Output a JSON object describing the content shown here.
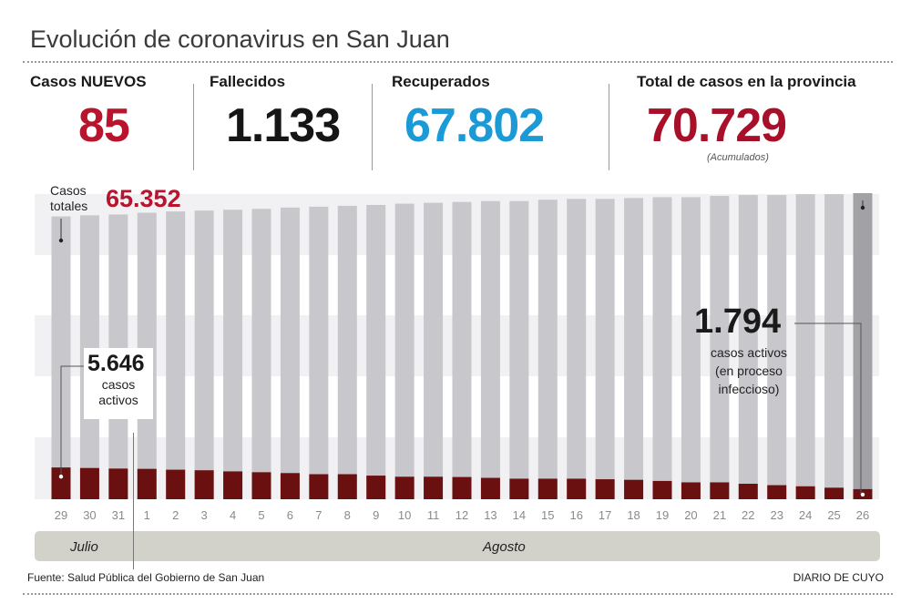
{
  "header": {
    "title": "Evolución de coronavirus en San Juan"
  },
  "stats": [
    {
      "label": "Casos NUEVOS",
      "value": "85",
      "color": "#b8142e"
    },
    {
      "label": "Fallecidos",
      "value": "1.133",
      "color": "#161616"
    },
    {
      "label": "Recuperados",
      "value": "67.802",
      "color": "#1b9ad6"
    },
    {
      "label": "Total de casos en la provincia",
      "value": "70.729",
      "color": "#a8102a",
      "note": "(Acumulados)"
    }
  ],
  "annotations": {
    "total_label": "Casos totales",
    "total_value": "65.352",
    "active_start_value": "5.646",
    "active_start_label": "casos activos",
    "active_end_value": "1.794",
    "active_end_lines": [
      "casos activos",
      "(en proceso",
      "infeccioso)"
    ]
  },
  "chart_data": {
    "type": "bar",
    "categories": [
      "29",
      "30",
      "31",
      "1",
      "2",
      "3",
      "4",
      "5",
      "6",
      "7",
      "8",
      "9",
      "10",
      "11",
      "12",
      "13",
      "14",
      "15",
      "16",
      "17",
      "18",
      "19",
      "20",
      "21",
      "22",
      "23",
      "24",
      "25",
      "26"
    ],
    "months": [
      {
        "label": "Julio"
      },
      {
        "label": "Agosto"
      }
    ],
    "series": [
      {
        "name": "Casos totales",
        "color": "#c8c8cc",
        "values": [
          65352,
          65600,
          65800,
          66200,
          66500,
          66700,
          66900,
          67100,
          67400,
          67600,
          67800,
          68000,
          68300,
          68500,
          68700,
          68900,
          68900,
          69200,
          69400,
          69400,
          69600,
          69800,
          69800,
          70100,
          70300,
          70300,
          70500,
          70500,
          70729
        ]
      },
      {
        "name": "casos activos",
        "color": "#6b1010",
        "values": [
          5646,
          5550,
          5450,
          5400,
          5250,
          5150,
          4950,
          4800,
          4650,
          4450,
          4450,
          4200,
          4000,
          4000,
          3950,
          3800,
          3650,
          3650,
          3650,
          3550,
          3450,
          3250,
          3000,
          3000,
          2750,
          2500,
          2300,
          2050,
          1794
        ]
      }
    ],
    "highlight_color": "#a2a2a6",
    "ylim": [
      0,
      70729
    ],
    "grid": false
  },
  "footer": {
    "source": "Fuente: Salud Pública del Gobierno de San Juan",
    "brand": "DIARIO DE CUYO"
  }
}
